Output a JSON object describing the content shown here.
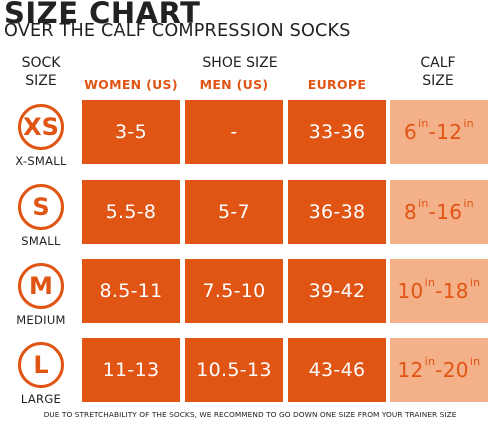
{
  "title": "SIZE CHART",
  "subtitle": "OVER THE CALF COMPRESSION SOCKS",
  "headers": {
    "sock_size_line1": "SOCK",
    "sock_size_line2": "SIZE",
    "shoe_size": "SHOE SIZE",
    "calf_size_line1": "CALF",
    "calf_size_line2": "SIZE"
  },
  "subheaders": {
    "women": "WOMEN (US)",
    "men": "MEN (US)",
    "europe": "EUROPE"
  },
  "calf_unit": "in",
  "rows": [
    {
      "code": "XS",
      "label": "X-SMALL",
      "women": "3-5",
      "men": "-",
      "europe": "33-36",
      "calf_min": "6",
      "calf_max": "12"
    },
    {
      "code": "S",
      "label": "SMALL",
      "women": "5.5-8",
      "men": "5-7",
      "europe": "36-38",
      "calf_min": "8",
      "calf_max": "16"
    },
    {
      "code": "M",
      "label": "MEDIUM",
      "women": "8.5-11",
      "men": "7.5-10",
      "europe": "39-42",
      "calf_min": "10",
      "calf_max": "18"
    },
    {
      "code": "L",
      "label": "LARGE",
      "women": "11-13",
      "men": "10.5-13",
      "europe": "43-46",
      "calf_min": "12",
      "calf_max": "20"
    }
  ],
  "footnote": "DUE TO STRETCHABILITY OF THE SOCKS, WE RECOMMEND TO GO DOWN ONE SIZE FROM YOUR TRAINER SIZE",
  "colors": {
    "accent": "#E05414",
    "calf_bg": "#F4B089",
    "text": "#222222"
  }
}
